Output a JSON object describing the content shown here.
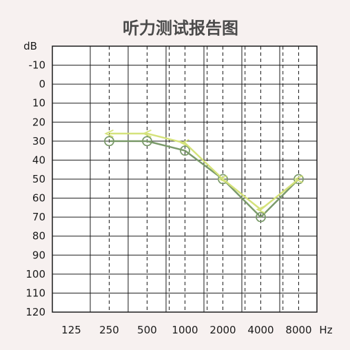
{
  "chart_data": {
    "type": "line",
    "title": "听力测试报告图",
    "y_unit": "dB",
    "x_unit": "Hz",
    "x_tick_labels": [
      "125",
      "250",
      "500",
      "1000",
      "2000",
      "4000",
      "8000"
    ],
    "y_tick_labels": [
      "-10",
      "0",
      "10",
      "20",
      "30",
      "40",
      "50",
      "60",
      "70",
      "80",
      "90",
      "100",
      "110",
      "120"
    ],
    "y_range": [
      -20,
      120
    ],
    "y_inverted": true,
    "x_scale": "log",
    "frequencies_hz": [
      250,
      500,
      750,
      1000,
      1500,
      2000,
      3000,
      4000,
      6000,
      8000
    ],
    "grid": true,
    "series": [
      {
        "marker": "circle",
        "color": "#7a9a6a",
        "points": [
          {
            "x": 250,
            "y": 30
          },
          {
            "x": 500,
            "y": 30
          },
          {
            "x": 1000,
            "y": 35
          },
          {
            "x": 2000,
            "y": 50
          },
          {
            "x": 4000,
            "y": 70
          },
          {
            "x": 8000,
            "y": 50
          }
        ]
      },
      {
        "marker": "angle",
        "color": "#d4e27a",
        "points": [
          {
            "x": 250,
            "y": 26
          },
          {
            "x": 500,
            "y": 26
          },
          {
            "x": 1000,
            "y": 31
          },
          {
            "x": 2000,
            "y": 50
          },
          {
            "x": 4000,
            "y": 66
          },
          {
            "x": 8000,
            "y": 50
          }
        ]
      }
    ]
  }
}
